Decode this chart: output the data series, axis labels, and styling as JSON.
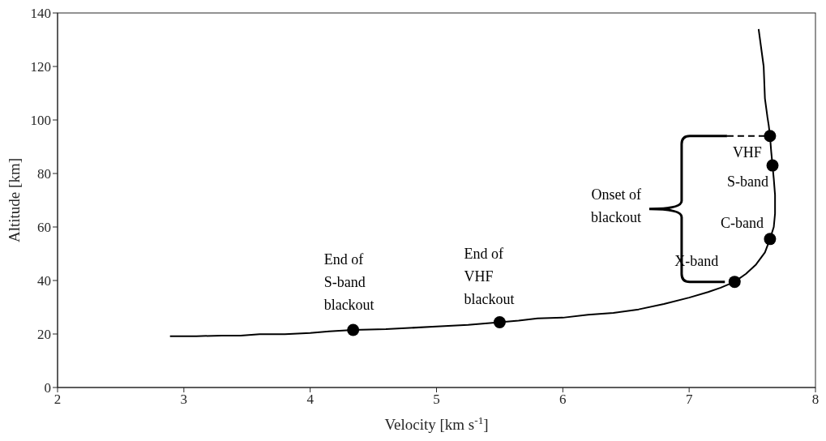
{
  "chart_data": {
    "type": "line",
    "xlabel": "Velocity [km s$^{-1}$]",
    "ylabel": "Altitude [km]",
    "xlim": [
      2,
      8
    ],
    "xticks": [
      2,
      3,
      4,
      5,
      6,
      7,
      8
    ],
    "ylim": [
      0,
      140
    ],
    "yticks": [
      0,
      20,
      40,
      60,
      80,
      100,
      120,
      140
    ],
    "series": [
      {
        "color": "#000000",
        "x": [
          2.89,
          3.1,
          3.3,
          3.45,
          3.6,
          3.8,
          4.0,
          4.15,
          4.34,
          4.6,
          5.0,
          5.25,
          5.5,
          5.65,
          5.8,
          6.0,
          6.2,
          6.4,
          6.6,
          6.8,
          7.0,
          7.15,
          7.25,
          7.36,
          7.45,
          7.53,
          7.6,
          7.64,
          7.67,
          7.68,
          7.68,
          7.67,
          7.66,
          7.65,
          7.64,
          7.63,
          7.62,
          7.6,
          7.59,
          7.55
        ],
        "values": [
          19.2,
          19.2,
          19.4,
          19.4,
          19.9,
          19.9,
          20.4,
          21,
          21.5,
          21.8,
          22.8,
          23.4,
          24.4,
          25,
          25.8,
          26.1,
          27.2,
          27.9,
          29.2,
          31.2,
          33.6,
          35.7,
          37.3,
          39.5,
          42.5,
          46,
          50.5,
          55.5,
          60,
          65,
          72,
          78,
          83,
          88,
          94,
          98,
          101,
          108,
          120,
          134
        ]
      },
      {
        "type": "line",
        "line_style": "dashed",
        "color": "#000000",
        "x": [
          7.3,
          7.64
        ],
        "values": [
          94,
          94
        ]
      },
      {
        "type": "scatter",
        "marker": "circle",
        "color": "#000000",
        "x": [
          7.64,
          7.66,
          7.64,
          7.36,
          4.34,
          5.5
        ],
        "values": [
          94,
          83,
          55.5,
          39.5,
          21.5,
          24.4
        ]
      }
    ],
    "annotations": [
      {
        "text": "VHF",
        "x": 7.64,
        "y": 94
      },
      {
        "text": "S-band",
        "x": 7.66,
        "y": 83
      },
      {
        "text": "C-band",
        "x": 7.64,
        "y": 55.5
      },
      {
        "text": "X-band",
        "x": 7.36,
        "y": 39.5
      },
      {
        "text": "End of S-band blackout",
        "x": 4.34,
        "y": 21.5
      },
      {
        "text": "End of VHF blackout",
        "x": 5.5,
        "y": 24.4
      },
      "Onset of blackout"
    ]
  }
}
